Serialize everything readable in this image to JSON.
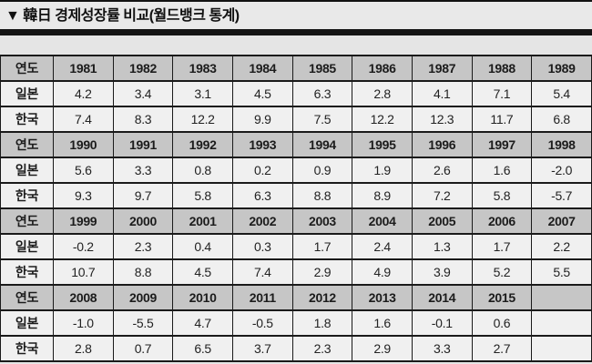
{
  "title": "▼ 韓日 경제성장률 비교(월드뱅크 통계)",
  "table": {
    "row_labels": {
      "year": "연도",
      "japan": "일본",
      "korea": "한국"
    },
    "blocks": [
      {
        "years": [
          "1981",
          "1982",
          "1983",
          "1984",
          "1985",
          "1986",
          "1987",
          "1988",
          "1989"
        ],
        "japan": [
          "4.2",
          "3.4",
          "3.1",
          "4.5",
          "6.3",
          "2.8",
          "4.1",
          "7.1",
          "5.4"
        ],
        "korea": [
          "7.4",
          "8.3",
          "12.2",
          "9.9",
          "7.5",
          "12.2",
          "12.3",
          "11.7",
          "6.8"
        ]
      },
      {
        "years": [
          "1990",
          "1991",
          "1992",
          "1993",
          "1994",
          "1995",
          "1996",
          "1997",
          "1998"
        ],
        "japan": [
          "5.6",
          "3.3",
          "0.8",
          "0.2",
          "0.9",
          "1.9",
          "2.6",
          "1.6",
          "-2.0"
        ],
        "korea": [
          "9.3",
          "9.7",
          "5.8",
          "6.3",
          "8.8",
          "8.9",
          "7.2",
          "5.8",
          "-5.7"
        ]
      },
      {
        "years": [
          "1999",
          "2000",
          "2001",
          "2002",
          "2003",
          "2004",
          "2005",
          "2006",
          "2007"
        ],
        "japan": [
          "-0.2",
          "2.3",
          "0.4",
          "0.3",
          "1.7",
          "2.4",
          "1.3",
          "1.7",
          "2.2"
        ],
        "korea": [
          "10.7",
          "8.8",
          "4.5",
          "7.4",
          "2.9",
          "4.9",
          "3.9",
          "5.2",
          "5.5"
        ]
      },
      {
        "years": [
          "2008",
          "2009",
          "2010",
          "2011",
          "2012",
          "2013",
          "2014",
          "2015",
          ""
        ],
        "japan": [
          "-1.0",
          "-5.5",
          "4.7",
          "-0.5",
          "1.8",
          "1.6",
          "-0.1",
          "0.6",
          ""
        ],
        "korea": [
          "2.8",
          "0.7",
          "6.5",
          "3.7",
          "2.3",
          "2.9",
          "3.3",
          "2.7",
          ""
        ]
      }
    ]
  },
  "colors": {
    "page_bg": "#e5e5e5",
    "header_row_bg": "#c6c6c6",
    "data_cell_bg": "#f0f0f0",
    "border": "#1a1a1a",
    "title_bar": "#141414"
  }
}
